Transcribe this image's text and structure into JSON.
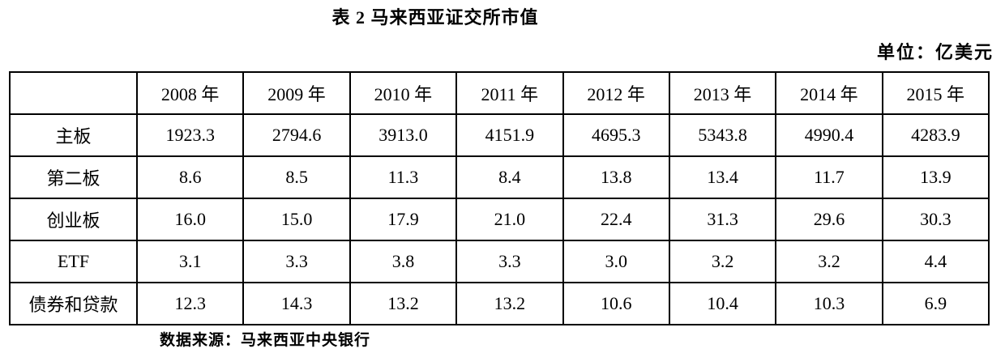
{
  "document": {
    "title": "表 2 马来西亚证交所市值",
    "unit_label": "单位：亿美元",
    "source_note": "数据来源：马来西亚中央银行"
  },
  "chart_data": {
    "type": "table",
    "title": "表 2 马来西亚证交所市值",
    "unit": "亿美元",
    "columns": [
      "",
      "2008 年",
      "2009 年",
      "2010 年",
      "2011 年",
      "2012 年",
      "2013 年",
      "2014 年",
      "2015 年"
    ],
    "rows": [
      {
        "label": "主板",
        "values": [
          "1923.3",
          "2794.6",
          "3913.0",
          "4151.9",
          "4695.3",
          "5343.8",
          "4990.4",
          "4283.9"
        ]
      },
      {
        "label": "第二板",
        "values": [
          "8.6",
          "8.5",
          "11.3",
          "8.4",
          "13.8",
          "13.4",
          "11.7",
          "13.9"
        ]
      },
      {
        "label": "创业板",
        "values": [
          "16.0",
          "15.0",
          "17.9",
          "21.0",
          "22.4",
          "31.3",
          "29.6",
          "30.3"
        ]
      },
      {
        "label": "ETF",
        "values": [
          "3.1",
          "3.3",
          "3.8",
          "3.3",
          "3.0",
          "3.2",
          "3.2",
          "4.4"
        ]
      },
      {
        "label": "债券和贷款",
        "values": [
          "12.3",
          "14.3",
          "13.2",
          "13.2",
          "10.6",
          "10.4",
          "10.3",
          "6.9"
        ]
      }
    ],
    "source": "马来西亚中央银行"
  }
}
